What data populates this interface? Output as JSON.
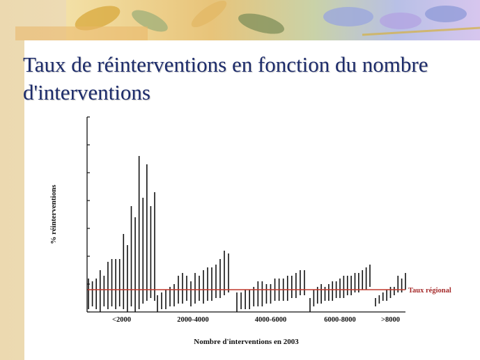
{
  "slide": {
    "title": "Taux de réinterventions en fonction du nombre d'interventions"
  },
  "colors": {
    "title": "#1d2c6b",
    "bars": "#111111",
    "regional_line": "#c0392b"
  },
  "chart_data": {
    "type": "bar",
    "subtype": "range-bars",
    "xlabel": "Nombre d'interventions en 2003",
    "ylabel": "% réinterventions",
    "ylim": [
      0,
      7
    ],
    "yticks": [
      0,
      1,
      2,
      3,
      4,
      5,
      6,
      7
    ],
    "y_tick_labels_shown": false,
    "regional_line": {
      "label": "Taux régional",
      "value": 0.8
    },
    "groups": [
      {
        "label": "<2000",
        "bars": [
          [
            0.1,
            1.2
          ],
          [
            0.2,
            1.1
          ],
          [
            0.1,
            1.2
          ],
          [
            0.0,
            1.5
          ],
          [
            0.2,
            1.3
          ],
          [
            0.1,
            1.8
          ],
          [
            0.2,
            1.9
          ],
          [
            0.1,
            1.9
          ],
          [
            0.2,
            1.9
          ],
          [
            0.1,
            2.8
          ],
          [
            0.0,
            2.4
          ],
          [
            0.2,
            3.8
          ],
          [
            0.0,
            3.4
          ],
          [
            0.1,
            5.6
          ],
          [
            0.3,
            4.1
          ],
          [
            0.4,
            5.3
          ],
          [
            0.5,
            3.8
          ],
          [
            0.4,
            4.3
          ]
        ]
      },
      {
        "label": "2000-4000",
        "bars": [
          [
            0.0,
            0.6
          ],
          [
            0.1,
            0.7
          ],
          [
            0.1,
            0.8
          ],
          [
            0.2,
            0.9
          ],
          [
            0.2,
            1.0
          ],
          [
            0.3,
            1.3
          ],
          [
            0.3,
            1.4
          ],
          [
            0.4,
            1.3
          ],
          [
            0.2,
            1.1
          ],
          [
            0.3,
            1.4
          ],
          [
            0.4,
            1.3
          ],
          [
            0.3,
            1.5
          ],
          [
            0.4,
            1.6
          ],
          [
            0.4,
            1.6
          ],
          [
            0.5,
            1.7
          ],
          [
            0.5,
            1.9
          ],
          [
            0.6,
            2.2
          ],
          [
            0.7,
            2.1
          ]
        ]
      },
      {
        "label": "4000-6000",
        "bars": [
          [
            0.0,
            0.7
          ],
          [
            0.1,
            0.7
          ],
          [
            0.1,
            0.8
          ],
          [
            0.1,
            0.8
          ],
          [
            0.2,
            0.9
          ],
          [
            0.2,
            1.1
          ],
          [
            0.2,
            1.1
          ],
          [
            0.3,
            1.0
          ],
          [
            0.3,
            1.0
          ],
          [
            0.4,
            1.2
          ],
          [
            0.4,
            1.2
          ],
          [
            0.4,
            1.2
          ],
          [
            0.4,
            1.3
          ],
          [
            0.5,
            1.3
          ],
          [
            0.5,
            1.4
          ],
          [
            0.6,
            1.5
          ],
          [
            0.6,
            1.5
          ]
        ]
      },
      {
        "label": "6000-8000",
        "bars": [
          [
            0.0,
            0.5
          ],
          [
            0.2,
            0.8
          ],
          [
            0.3,
            0.9
          ],
          [
            0.3,
            1.0
          ],
          [
            0.4,
            0.9
          ],
          [
            0.4,
            1.0
          ],
          [
            0.4,
            1.1
          ],
          [
            0.5,
            1.1
          ],
          [
            0.5,
            1.2
          ],
          [
            0.5,
            1.3
          ],
          [
            0.6,
            1.3
          ],
          [
            0.6,
            1.3
          ],
          [
            0.7,
            1.4
          ],
          [
            0.7,
            1.4
          ],
          [
            0.8,
            1.5
          ],
          [
            0.8,
            1.6
          ],
          [
            0.9,
            1.7
          ]
        ]
      },
      {
        "label": ">8000",
        "bars": [
          [
            0.2,
            0.5
          ],
          [
            0.3,
            0.6
          ],
          [
            0.4,
            0.7
          ],
          [
            0.4,
            0.8
          ],
          [
            0.5,
            0.9
          ],
          [
            0.6,
            0.9
          ],
          [
            0.7,
            1.3
          ],
          [
            0.7,
            1.2
          ],
          [
            0.8,
            1.4
          ]
        ]
      }
    ]
  }
}
